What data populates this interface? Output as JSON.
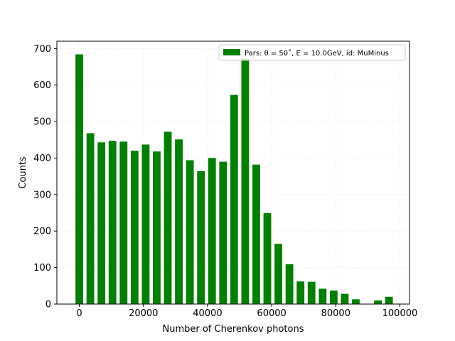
{
  "chart_data": {
    "type": "bar",
    "xlabel": "Number of Cherenkov photons",
    "ylabel": "Counts",
    "legend": {
      "label": "Pars: θ = 50˚, E = 10.0GeV, id: MuMinus",
      "position": "top-right",
      "color": "#008000"
    },
    "bar_color": "#008000",
    "grid": true,
    "xlim": [
      -7000,
      103000
    ],
    "ylim": [
      0,
      720
    ],
    "xticks": [
      0,
      20000,
      40000,
      60000,
      80000,
      100000
    ],
    "xtick_labels": [
      "0",
      "20000",
      "40000",
      "60000",
      "80000",
      "100000"
    ],
    "yticks": [
      0,
      100,
      200,
      300,
      400,
      500,
      600,
      700
    ],
    "ytick_labels": [
      "0",
      "100",
      "200",
      "300",
      "400",
      "500",
      "600",
      "700"
    ],
    "bar_width": 2400,
    "x": [
      0,
      3450,
      6900,
      10350,
      13800,
      17250,
      20700,
      24150,
      27600,
      31050,
      34500,
      37950,
      41400,
      44850,
      48300,
      51750,
      55200,
      58650,
      62100,
      65550,
      69000,
      72450,
      75900,
      79350,
      82800,
      86250,
      89700,
      93150,
      96600
    ],
    "values": [
      684,
      468,
      443,
      447,
      445,
      420,
      437,
      418,
      472,
      451,
      394,
      364,
      400,
      390,
      573,
      672,
      382,
      249,
      165,
      109,
      62,
      61,
      42,
      37,
      28,
      13,
      0,
      10,
      20
    ]
  }
}
